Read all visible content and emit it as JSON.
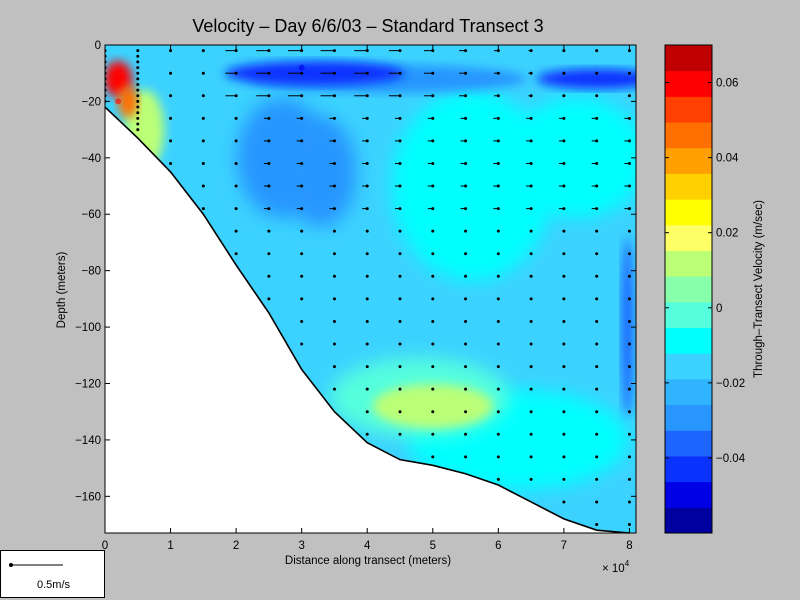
{
  "chart_data": {
    "type": "heatmap",
    "title": "Velocity – Day 6/6/03 – Standard Transect 3",
    "xlabel": "Distance along transect (meters)",
    "ylabel": "Depth (meters)",
    "x_multiplier_label": "× 10",
    "x_multiplier_exp": "4",
    "xlim": [
      0,
      8.1
    ],
    "ylim": [
      -173,
      0
    ],
    "x_ticks": [
      "0",
      "1",
      "2",
      "3",
      "4",
      "5",
      "6",
      "7",
      "8"
    ],
    "y_ticks": [
      "0",
      "−20",
      "−40",
      "−60",
      "−80",
      "−100",
      "−120",
      "−140",
      "−160"
    ],
    "colorbar": {
      "label": "Through–Transect Velocity (m/sec)",
      "range": [
        -0.06,
        0.07
      ],
      "ticks": [
        "0.06",
        "0.04",
        "0.02",
        "0",
        "−0.02",
        "−0.04"
      ],
      "tick_values": [
        0.06,
        0.04,
        0.02,
        0,
        -0.02,
        -0.04
      ],
      "colors": [
        "#0000a0",
        "#0000e6",
        "#0a32ff",
        "#1e64ff",
        "#2896ff",
        "#30b4ff",
        "#3cd2ff",
        "#00ffff",
        "#55ffdd",
        "#88ffaa",
        "#bbff77",
        "#ffff66",
        "#ffff00",
        "#ffd000",
        "#ffa000",
        "#ff7000",
        "#ff4000",
        "#ff0000",
        "#c00000"
      ]
    },
    "bottom_profile": [
      {
        "x": 0,
        "depth": -22
      },
      {
        "x": 0.5,
        "depth": -33
      },
      {
        "x": 1.0,
        "depth": -45
      },
      {
        "x": 1.5,
        "depth": -60
      },
      {
        "x": 2.0,
        "depth": -78
      },
      {
        "x": 2.5,
        "depth": -95
      },
      {
        "x": 3.0,
        "depth": -115
      },
      {
        "x": 3.5,
        "depth": -130
      },
      {
        "x": 4.0,
        "depth": -141
      },
      {
        "x": 4.5,
        "depth": -147
      },
      {
        "x": 5.0,
        "depth": -149
      },
      {
        "x": 5.5,
        "depth": -152
      },
      {
        "x": 6.0,
        "depth": -156
      },
      {
        "x": 6.5,
        "depth": -162
      },
      {
        "x": 7.0,
        "depth": -168
      },
      {
        "x": 7.5,
        "depth": -172
      },
      {
        "x": 8.0,
        "depth": -173
      }
    ],
    "velocity_features": [
      {
        "feature": "surface jet core",
        "x": 3.0,
        "depth": -8,
        "value": -0.05
      },
      {
        "feature": "near-shore maximum",
        "x": 0.2,
        "depth": -20,
        "value": 0.06
      },
      {
        "feature": "mid-depth weak flow",
        "x": 5.0,
        "depth": -130,
        "value": 0.01
      }
    ],
    "grid": false,
    "scale_arrow": {
      "label": "0.5m/s"
    }
  }
}
